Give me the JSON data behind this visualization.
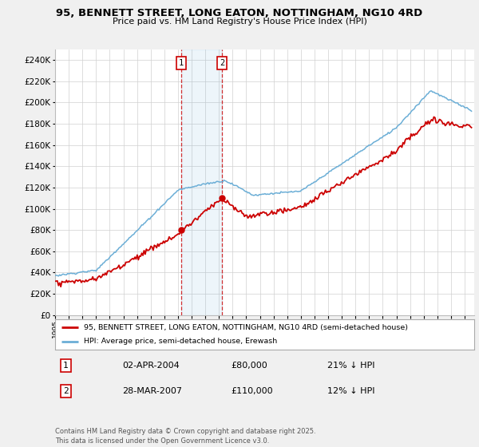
{
  "title": "95, BENNETT STREET, LONG EATON, NOTTINGHAM, NG10 4RD",
  "subtitle": "Price paid vs. HM Land Registry's House Price Index (HPI)",
  "ylim": [
    0,
    250000
  ],
  "yticks": [
    0,
    20000,
    40000,
    60000,
    80000,
    100000,
    120000,
    140000,
    160000,
    180000,
    200000,
    220000,
    240000
  ],
  "hpi_color": "#6baed6",
  "price_color": "#cc0000",
  "t1_year": 2004.25,
  "t1_price": 80000,
  "t2_year": 2007.22,
  "t2_price": 110000,
  "legend_property": "95, BENNETT STREET, LONG EATON, NOTTINGHAM, NG10 4RD (semi-detached house)",
  "legend_hpi": "HPI: Average price, semi-detached house, Erewash",
  "table_rows": [
    {
      "num": "1",
      "date": "02-APR-2004",
      "price": "£80,000",
      "pct": "21% ↓ HPI"
    },
    {
      "num": "2",
      "date": "28-MAR-2007",
      "price": "£110,000",
      "pct": "12% ↓ HPI"
    }
  ],
  "footnote": "Contains HM Land Registry data © Crown copyright and database right 2025.\nThis data is licensed under the Open Government Licence v3.0.",
  "bg_color": "#f0f0f0"
}
